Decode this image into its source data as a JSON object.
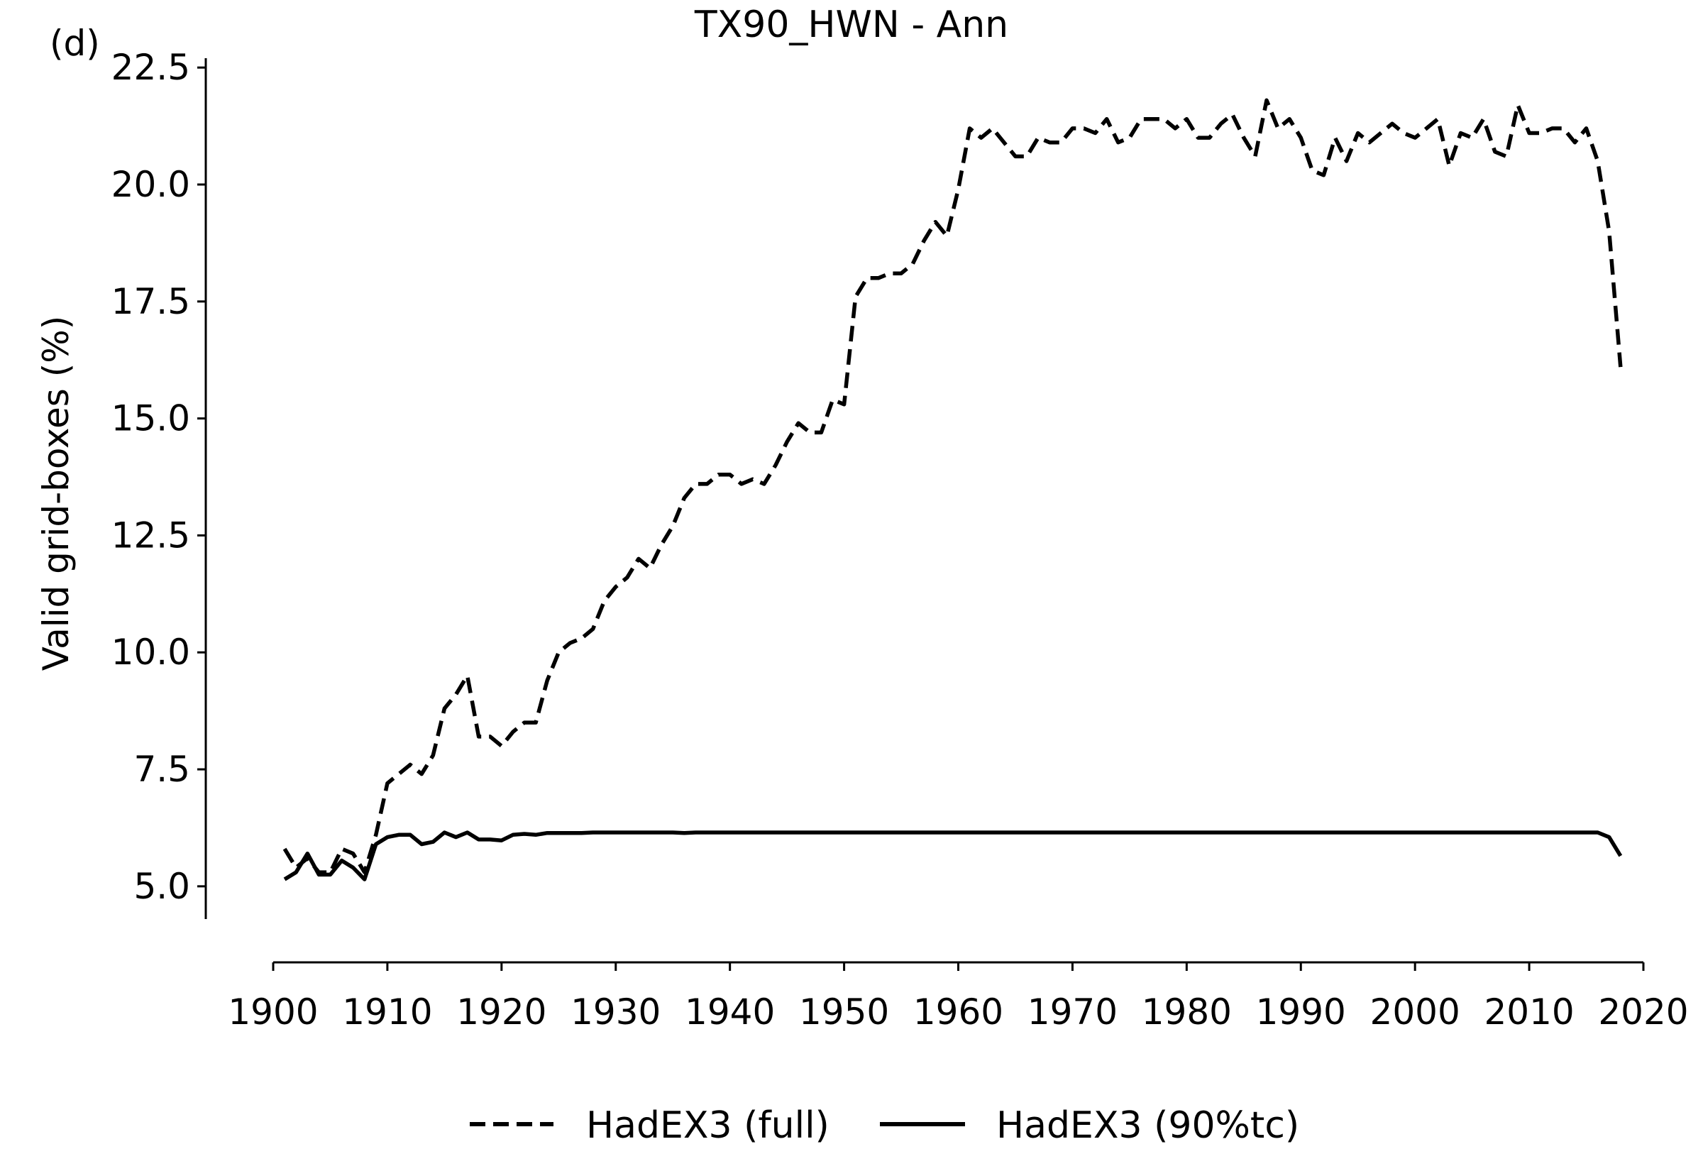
{
  "panel_label": "(d)",
  "chart_data": {
    "type": "line",
    "title": "TX90_HWN - Ann",
    "xlabel": "",
    "ylabel": "Valid grid-boxes (%)",
    "xlim": [
      1900,
      2020
    ],
    "ylim": [
      4.3,
      22.7
    ],
    "x_ticks": [
      1900,
      1910,
      1920,
      1930,
      1940,
      1950,
      1960,
      1970,
      1980,
      1990,
      2000,
      2010,
      2020
    ],
    "y_ticks": [
      5.0,
      7.5,
      10.0,
      12.5,
      15.0,
      17.5,
      20.0,
      22.5
    ],
    "y_tick_labels": [
      "5.0",
      "7.5",
      "10.0",
      "12.5",
      "15.0",
      "17.5",
      "20.0",
      "22.5"
    ],
    "grid": false,
    "legend": "bottom-center",
    "colors": {
      "line": "#000000"
    },
    "series": [
      {
        "name": "HadEX3 (full)",
        "style": "dashed",
        "x": [
          1901,
          1902,
          1903,
          1904,
          1905,
          1906,
          1907,
          1908,
          1909,
          1910,
          1911,
          1912,
          1913,
          1914,
          1915,
          1916,
          1917,
          1918,
          1919,
          1920,
          1921,
          1922,
          1923,
          1924,
          1925,
          1926,
          1927,
          1928,
          1929,
          1930,
          1931,
          1932,
          1933,
          1934,
          1935,
          1936,
          1937,
          1938,
          1939,
          1940,
          1941,
          1942,
          1943,
          1944,
          1945,
          1946,
          1947,
          1948,
          1949,
          1950,
          1951,
          1952,
          1953,
          1954,
          1955,
          1956,
          1957,
          1958,
          1959,
          1960,
          1961,
          1962,
          1963,
          1964,
          1965,
          1966,
          1967,
          1968,
          1969,
          1970,
          1971,
          1972,
          1973,
          1974,
          1975,
          1976,
          1977,
          1978,
          1979,
          1980,
          1981,
          1982,
          1983,
          1984,
          1985,
          1986,
          1987,
          1988,
          1989,
          1990,
          1991,
          1992,
          1993,
          1994,
          1995,
          1996,
          1997,
          1998,
          1999,
          2000,
          2001,
          2002,
          2003,
          2004,
          2005,
          2006,
          2007,
          2008,
          2009,
          2010,
          2011,
          2012,
          2013,
          2014,
          2015,
          2016,
          2017,
          2018
        ],
        "y": [
          5.8,
          5.4,
          5.6,
          5.3,
          5.3,
          5.8,
          5.7,
          5.3,
          6.1,
          7.2,
          7.4,
          7.6,
          7.4,
          7.8,
          8.8,
          9.1,
          9.5,
          8.2,
          8.2,
          8.0,
          8.3,
          8.5,
          8.5,
          9.4,
          10.0,
          10.2,
          10.3,
          10.5,
          11.1,
          11.4,
          11.6,
          12.0,
          11.8,
          12.3,
          12.7,
          13.3,
          13.6,
          13.6,
          13.8,
          13.8,
          13.6,
          13.7,
          13.6,
          14.0,
          14.5,
          14.9,
          14.7,
          14.7,
          15.4,
          15.3,
          17.6,
          18.0,
          18.0,
          18.1,
          18.1,
          18.3,
          18.8,
          19.2,
          18.9,
          19.9,
          21.2,
          21.0,
          21.2,
          20.9,
          20.6,
          20.6,
          21.0,
          20.9,
          20.9,
          21.2,
          21.2,
          21.1,
          21.4,
          20.9,
          21.0,
          21.4,
          21.4,
          21.4,
          21.2,
          21.4,
          21.0,
          21.0,
          21.3,
          21.5,
          21.0,
          20.6,
          21.8,
          21.2,
          21.4,
          21.0,
          20.3,
          20.2,
          21.0,
          20.5,
          21.1,
          20.9,
          21.1,
          21.3,
          21.1,
          21.0,
          21.2,
          21.4,
          20.4,
          21.1,
          21.0,
          21.4,
          20.7,
          20.6,
          21.7,
          21.1,
          21.1,
          21.2,
          21.2,
          20.9,
          21.2,
          20.5,
          19.0,
          16.1
        ]
      },
      {
        "name": "HadEX3 (90%tc)",
        "style": "solid",
        "x": [
          1901,
          1902,
          1903,
          1904,
          1905,
          1906,
          1907,
          1908,
          1909,
          1910,
          1911,
          1912,
          1913,
          1914,
          1915,
          1916,
          1917,
          1918,
          1919,
          1920,
          1921,
          1922,
          1923,
          1924,
          1925,
          1926,
          1927,
          1928,
          1929,
          1930,
          1931,
          1932,
          1933,
          1934,
          1935,
          1936,
          1937,
          1938,
          1939,
          1940,
          1941,
          1942,
          1943,
          1944,
          1945,
          1946,
          1947,
          1948,
          1949,
          1950,
          1951,
          1952,
          1953,
          1954,
          1955,
          1956,
          1957,
          1958,
          1959,
          1960,
          1961,
          1962,
          1963,
          1964,
          1965,
          1966,
          1967,
          1968,
          1969,
          1970,
          1971,
          1972,
          1973,
          1974,
          1975,
          1976,
          1977,
          1978,
          1979,
          1980,
          1981,
          1982,
          1983,
          1984,
          1985,
          1986,
          1987,
          1988,
          1989,
          1990,
          1991,
          1992,
          1993,
          1994,
          1995,
          1996,
          1997,
          1998,
          1999,
          2000,
          2001,
          2002,
          2003,
          2004,
          2005,
          2006,
          2007,
          2008,
          2009,
          2010,
          2011,
          2012,
          2013,
          2014,
          2015,
          2016,
          2017,
          2018
        ],
        "y": [
          5.15,
          5.3,
          5.7,
          5.25,
          5.25,
          5.55,
          5.4,
          5.15,
          5.9,
          6.05,
          6.1,
          6.1,
          5.9,
          5.95,
          6.15,
          6.05,
          6.15,
          6.0,
          6.0,
          5.98,
          6.1,
          6.12,
          6.1,
          6.14,
          6.14,
          6.14,
          6.14,
          6.15,
          6.15,
          6.15,
          6.15,
          6.15,
          6.15,
          6.15,
          6.15,
          6.14,
          6.15,
          6.15,
          6.15,
          6.15,
          6.15,
          6.15,
          6.15,
          6.15,
          6.15,
          6.15,
          6.15,
          6.15,
          6.15,
          6.15,
          6.15,
          6.15,
          6.15,
          6.15,
          6.15,
          6.15,
          6.15,
          6.15,
          6.15,
          6.15,
          6.15,
          6.15,
          6.15,
          6.15,
          6.15,
          6.15,
          6.15,
          6.15,
          6.15,
          6.15,
          6.15,
          6.15,
          6.15,
          6.15,
          6.15,
          6.15,
          6.15,
          6.15,
          6.15,
          6.15,
          6.15,
          6.15,
          6.15,
          6.15,
          6.15,
          6.15,
          6.15,
          6.15,
          6.15,
          6.15,
          6.15,
          6.15,
          6.15,
          6.15,
          6.15,
          6.15,
          6.15,
          6.15,
          6.15,
          6.15,
          6.15,
          6.15,
          6.15,
          6.15,
          6.15,
          6.15,
          6.15,
          6.15,
          6.15,
          6.15,
          6.15,
          6.15,
          6.15,
          6.15,
          6.15,
          6.15,
          6.05,
          5.65
        ]
      }
    ]
  }
}
